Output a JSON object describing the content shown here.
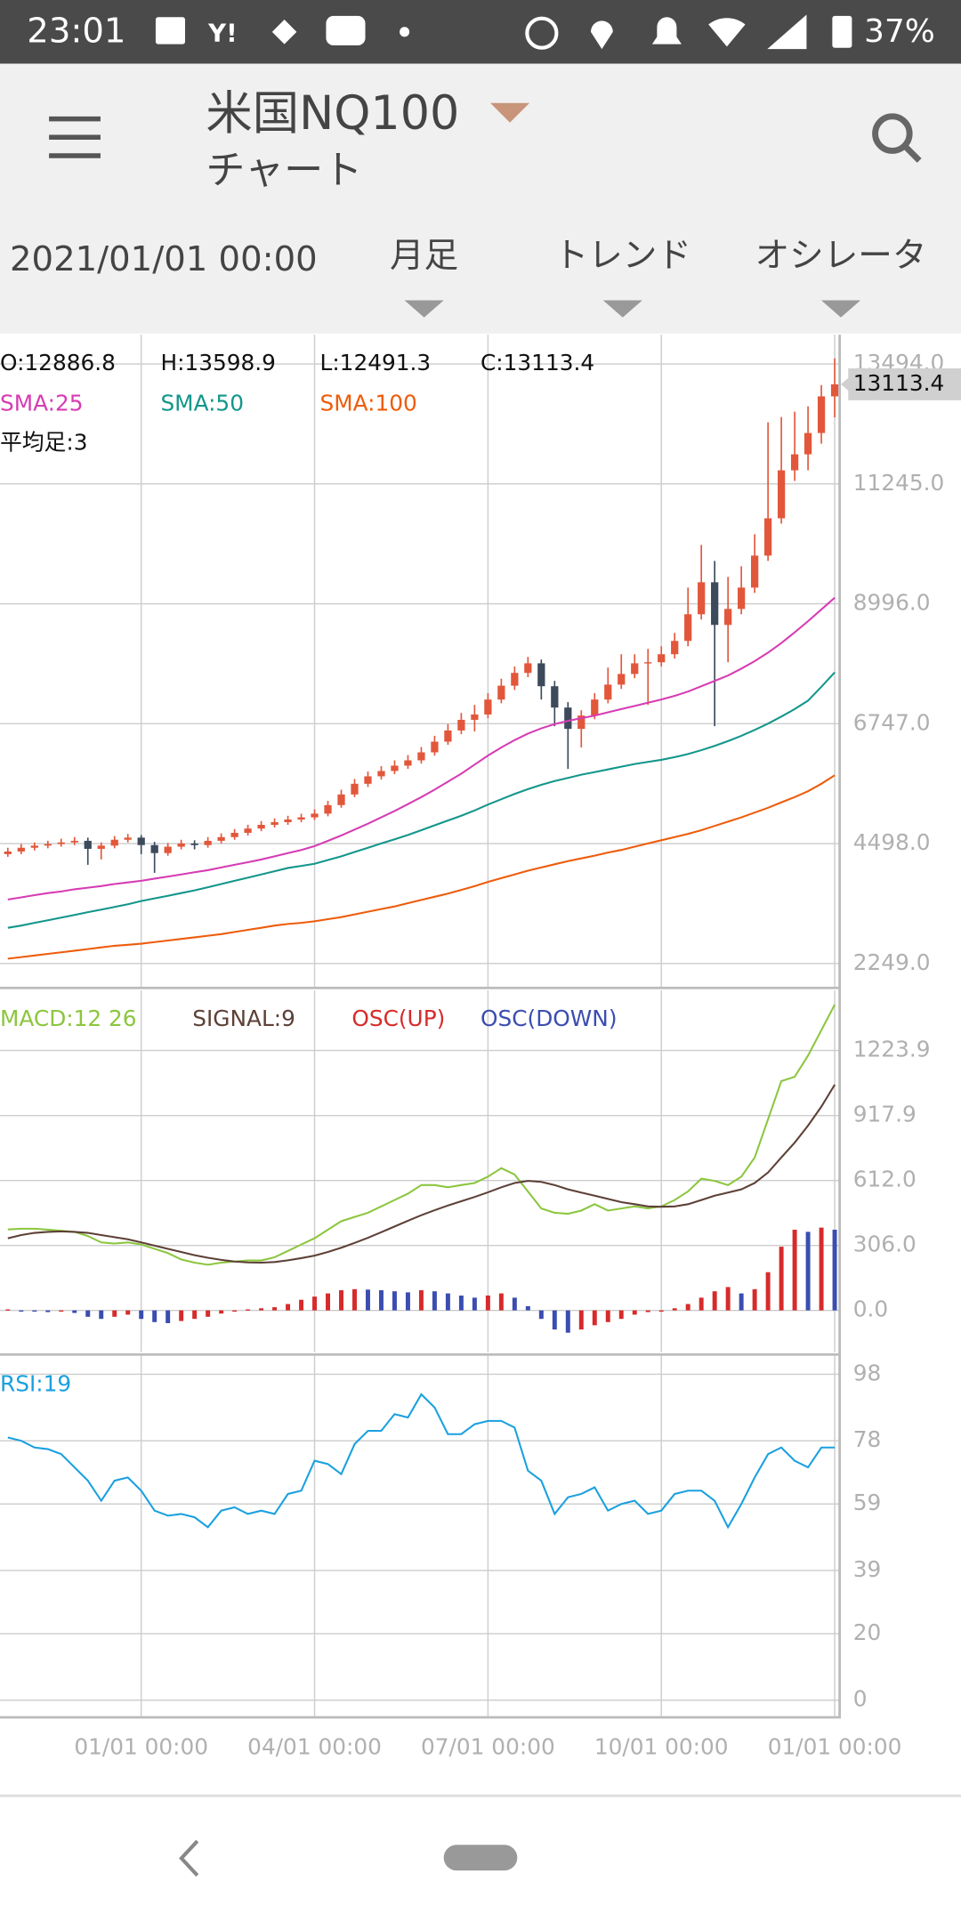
{
  "status_bar": {
    "time": "23:01",
    "battery": "37%"
  },
  "app_bar": {
    "title": "米国NQ100",
    "subtitle": "チャート"
  },
  "toolbar": {
    "date": "2021/01/01 00:00",
    "tabs": [
      "月足",
      "トレンド",
      "オシレータ"
    ]
  },
  "chart_data": [
    {
      "type": "candlestick",
      "info_labels": [
        "O:12886.8",
        "H:13598.9",
        "L:12491.3",
        "C:13113.4"
      ],
      "indicator_label": "平均足:3",
      "last_price_label": "13113.4",
      "up_color": "#e2573b",
      "down_color": "#3d4a5c",
      "open": [
        4300,
        4350,
        4420,
        4460,
        4490,
        4520,
        4550,
        4400,
        4460,
        4570,
        4610,
        4470,
        4320,
        4440,
        4500,
        4470,
        4550,
        4620,
        4700,
        4780,
        4850,
        4900,
        4950,
        4990,
        5060,
        5220,
        5420,
        5620,
        5760,
        5860,
        5960,
        6060,
        6210,
        6410,
        6620,
        6820,
        6920,
        7200,
        7460,
        7700,
        7880,
        7450,
        7050,
        6650,
        6900,
        7200,
        7480,
        7680,
        7880,
        7900,
        8050,
        8300,
        8800,
        9400,
        8600,
        8900,
        9300,
        9900,
        10600,
        11500,
        11800,
        12200,
        12886.8
      ],
      "high": [
        4420,
        4490,
        4520,
        4550,
        4590,
        4620,
        4610,
        4520,
        4640,
        4680,
        4660,
        4530,
        4510,
        4570,
        4560,
        4620,
        4690,
        4770,
        4850,
        4920,
        4970,
        5020,
        5060,
        5140,
        5300,
        5510,
        5710,
        5850,
        5950,
        6060,
        6160,
        6310,
        6520,
        6740,
        6950,
        7100,
        7320,
        7590,
        7820,
        8000,
        7950,
        7550,
        7150,
        7000,
        7320,
        7800,
        8050,
        8050,
        8150,
        8200,
        8450,
        9300,
        10100,
        9800,
        9500,
        9700,
        10300,
        12400,
        12500,
        12600,
        12700,
        13100,
        13598.9
      ],
      "low": [
        4250,
        4300,
        4370,
        4410,
        4440,
        4470,
        4100,
        4200,
        4410,
        4520,
        4300,
        3950,
        4270,
        4390,
        4390,
        4420,
        4500,
        4570,
        4650,
        4730,
        4800,
        4850,
        4900,
        4940,
        5010,
        5170,
        5370,
        5560,
        5700,
        5800,
        5900,
        6000,
        6150,
        6350,
        6550,
        6600,
        6850,
        7130,
        7380,
        7620,
        7200,
        6700,
        5900,
        6300,
        6830,
        7130,
        7400,
        7600,
        7100,
        7820,
        7970,
        8200,
        8700,
        6700,
        7900,
        8800,
        9200,
        9800,
        10500,
        11300,
        11500,
        12000,
        12491.3
      ],
      "close": [
        4350,
        4420,
        4460,
        4490,
        4520,
        4550,
        4400,
        4460,
        4570,
        4610,
        4470,
        4320,
        4440,
        4500,
        4470,
        4550,
        4620,
        4700,
        4780,
        4850,
        4900,
        4950,
        4990,
        5060,
        5220,
        5420,
        5620,
        5760,
        5860,
        5960,
        6060,
        6210,
        6410,
        6620,
        6820,
        6920,
        7200,
        7460,
        7700,
        7880,
        7450,
        7050,
        6650,
        6900,
        7200,
        7480,
        7680,
        7880,
        7900,
        8050,
        8300,
        8800,
        9400,
        8600,
        8900,
        9300,
        9900,
        10600,
        11500,
        11800,
        12200,
        12886.8,
        13113.4
      ],
      "series": [
        {
          "name": "SMA:25",
          "color": "#d63cb4",
          "values": [
            3450,
            3490,
            3530,
            3570,
            3600,
            3640,
            3670,
            3700,
            3740,
            3770,
            3800,
            3840,
            3880,
            3920,
            3960,
            4000,
            4050,
            4100,
            4150,
            4200,
            4260,
            4320,
            4380,
            4450,
            4550,
            4650,
            4760,
            4870,
            4990,
            5110,
            5240,
            5370,
            5510,
            5660,
            5810,
            5980,
            6150,
            6300,
            6440,
            6560,
            6660,
            6740,
            6800,
            6850,
            6900,
            6960,
            7020,
            7080,
            7140,
            7200,
            7270,
            7350,
            7450,
            7550,
            7650,
            7780,
            7920,
            8080,
            8260,
            8460,
            8670,
            8890,
            9110
          ]
        },
        {
          "name": "SMA:50",
          "color": "#13968b",
          "values": [
            2920,
            2960,
            3010,
            3060,
            3110,
            3160,
            3210,
            3260,
            3310,
            3360,
            3420,
            3470,
            3520,
            3570,
            3620,
            3680,
            3740,
            3800,
            3860,
            3920,
            3980,
            4040,
            4080,
            4120,
            4190,
            4260,
            4340,
            4420,
            4500,
            4580,
            4660,
            4750,
            4840,
            4930,
            5020,
            5120,
            5230,
            5330,
            5430,
            5520,
            5600,
            5670,
            5730,
            5790,
            5840,
            5890,
            5940,
            5990,
            6030,
            6070,
            6120,
            6180,
            6250,
            6330,
            6420,
            6520,
            6630,
            6750,
            6880,
            7020,
            7180,
            7440,
            7710
          ]
        },
        {
          "name": "SMA:100",
          "color": "#ee5c0b",
          "values": [
            2340,
            2370,
            2400,
            2430,
            2460,
            2490,
            2520,
            2550,
            2580,
            2600,
            2620,
            2650,
            2680,
            2710,
            2740,
            2770,
            2800,
            2840,
            2880,
            2920,
            2960,
            2990,
            3010,
            3040,
            3080,
            3120,
            3170,
            3220,
            3270,
            3320,
            3380,
            3440,
            3500,
            3560,
            3630,
            3700,
            3780,
            3850,
            3920,
            3990,
            4050,
            4110,
            4170,
            4220,
            4270,
            4330,
            4380,
            4440,
            4500,
            4560,
            4620,
            4680,
            4750,
            4830,
            4910,
            4990,
            5080,
            5170,
            5270,
            5370,
            5480,
            5620,
            5780
          ]
        }
      ],
      "ylim": [
        1813,
        14045
      ],
      "yticks": [
        {
          "value": 2249,
          "label": "2249.0"
        },
        {
          "value": 4498,
          "label": "4498.0"
        },
        {
          "value": 6747,
          "label": "6747.0"
        },
        {
          "value": 8996,
          "label": "8996.0"
        },
        {
          "value": 11245,
          "label": "11245.0"
        },
        {
          "value": 13494,
          "label": "13494.0"
        }
      ],
      "grid": true
    },
    {
      "type": "macd",
      "series": [
        {
          "name": "MACD:12 26",
          "color": "#8cc63f",
          "values": [
            381,
            385,
            385,
            380,
            375,
            370,
            350,
            320,
            315,
            320,
            310,
            290,
            270,
            240,
            225,
            215,
            225,
            230,
            235,
            235,
            250,
            280,
            310,
            340,
            380,
            420,
            440,
            460,
            490,
            520,
            550,
            590,
            590,
            580,
            590,
            600,
            630,
            670,
            640,
            560,
            480,
            460,
            455,
            470,
            500,
            470,
            480,
            490,
            480,
            490,
            520,
            560,
            620,
            610,
            590,
            630,
            720,
            900,
            1080,
            1100,
            1200,
            1320,
            1440
          ]
        },
        {
          "name": "SIGNAL:9",
          "color": "#5d4037",
          "values": [
            340,
            355,
            365,
            370,
            372,
            370,
            365,
            355,
            345,
            335,
            320,
            305,
            290,
            275,
            260,
            248,
            238,
            230,
            226,
            225,
            228,
            236,
            246,
            258,
            275,
            295,
            318,
            342,
            368,
            395,
            422,
            448,
            472,
            494,
            514,
            534,
            556,
            580,
            600,
            610,
            605,
            590,
            570,
            555,
            540,
            525,
            510,
            500,
            490,
            488,
            490,
            500,
            520,
            540,
            555,
            570,
            600,
            650,
            720,
            790,
            870,
            960,
            1063
          ]
        }
      ],
      "histogram": {
        "up": {
          "name": "OSC(UP)",
          "color": "#d62b2b"
        },
        "down": {
          "name": "OSC(DOWN)",
          "color": "#3b4db0"
        },
        "values": [
          5,
          0,
          -5,
          -8,
          -5,
          -12,
          -30,
          -40,
          -30,
          -20,
          -40,
          -55,
          -60,
          -50,
          -40,
          -30,
          -15,
          -5,
          5,
          10,
          15,
          30,
          50,
          65,
          80,
          95,
          100,
          98,
          95,
          90,
          85,
          95,
          90,
          80,
          70,
          60,
          70,
          80,
          60,
          20,
          -40,
          -90,
          -105,
          -90,
          -70,
          -55,
          -40,
          -20,
          -8,
          0,
          10,
          30,
          60,
          90,
          110,
          80,
          100,
          180,
          300,
          380,
          370,
          390,
          380
        ]
      },
      "ylim": [
        -196,
        1507
      ],
      "yticks": [
        {
          "value": 0,
          "label": "0.0"
        },
        {
          "value": 306,
          "label": "306.0"
        },
        {
          "value": 612,
          "label": "612.0"
        },
        917.9,
        1223.9
      ],
      "grid": true
    },
    {
      "type": "line",
      "categories": [
        null,
        null,
        null,
        null,
        null,
        null,
        null,
        null,
        null,
        null,
        "01/01 00:00",
        null,
        null,
        null,
        null,
        null,
        null,
        null,
        null,
        null,
        null,
        null,
        null,
        "04/01 00:00",
        null,
        null,
        null,
        null,
        null,
        null,
        null,
        null,
        null,
        null,
        null,
        null,
        "07/01 00:00",
        null,
        null,
        null,
        null,
        null,
        null,
        null,
        null,
        null,
        null,
        null,
        null,
        "10/01 00:00",
        null,
        null,
        null,
        null,
        null,
        null,
        null,
        null,
        null,
        null,
        null,
        null,
        "01/01 00:00"
      ],
      "series": [
        {
          "name": "RSI:19",
          "color": "#1aa0e0",
          "values": [
            79,
            78,
            76,
            75.5,
            74,
            70,
            66,
            60,
            66,
            67,
            63,
            57,
            55.5,
            56,
            55,
            52,
            57,
            58,
            56,
            57,
            56,
            62,
            63,
            72,
            71,
            68,
            77,
            81,
            81,
            86,
            85,
            92,
            88,
            80,
            80,
            83,
            84,
            84,
            82,
            69,
            66,
            56,
            61,
            62,
            64,
            57,
            59,
            60,
            56,
            57,
            62,
            63,
            63,
            60,
            52,
            59,
            67,
            74,
            76,
            72,
            70,
            76,
            76
          ]
        }
      ],
      "ylim": [
        -4.8,
        103.6
      ],
      "yticks": [
        0,
        20,
        39,
        59,
        78,
        98
      ],
      "grid": true
    }
  ]
}
